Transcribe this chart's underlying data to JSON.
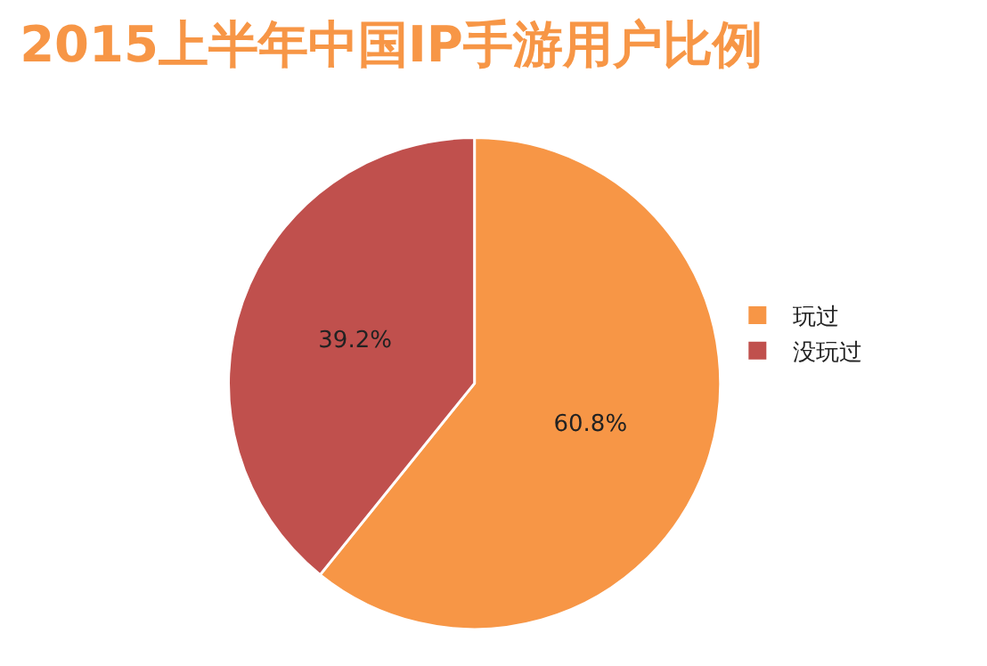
{
  "chart_data": {
    "type": "pie",
    "title": "2015上半年中国IP手游用户比例",
    "categories": [
      "玩过",
      "没玩过"
    ],
    "values": [
      60.8,
      39.2
    ],
    "colors": [
      "#f79646",
      "#c0504d"
    ],
    "value_labels": [
      "60.8%",
      "39.2%"
    ],
    "legend": "right"
  }
}
